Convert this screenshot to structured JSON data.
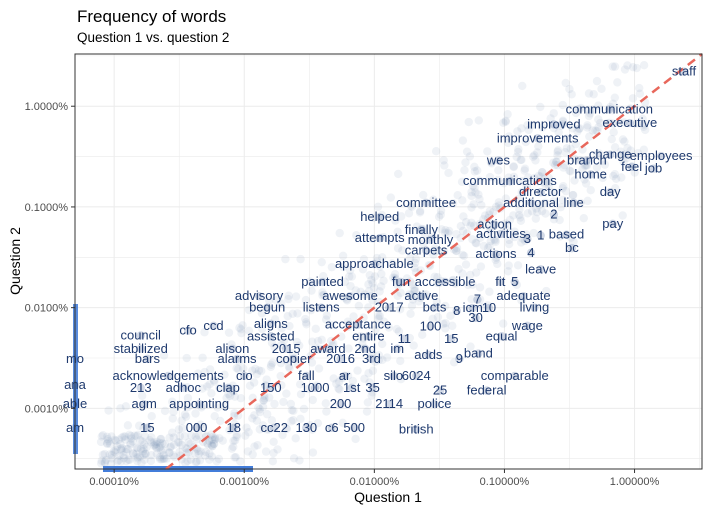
{
  "chart_data": {
    "type": "scatter",
    "title": "Frequency of words",
    "subtitle": "Question 1 vs. question 2",
    "xlabel": "Question 1",
    "ylabel": "Question 2",
    "x_scale": "log10",
    "y_scale": "log10",
    "xlim": [
      5e-07,
      0.033
    ],
    "ylim": [
      2.5e-06,
      0.033
    ],
    "x_ticks": [
      {
        "value": 1e-06,
        "label": "0.00010%"
      },
      {
        "value": 1e-05,
        "label": "0.00100%"
      },
      {
        "value": 0.0001,
        "label": "0.01000%"
      },
      {
        "value": 0.001,
        "label": "0.10000%"
      },
      {
        "value": 0.01,
        "label": "1.00000%"
      }
    ],
    "y_ticks": [
      {
        "value": 1e-05,
        "label": "0.0010%"
      },
      {
        "value": 0.0001,
        "label": "0.0100%"
      },
      {
        "value": 0.001,
        "label": "0.1000%"
      },
      {
        "value": 0.01,
        "label": "1.0000%"
      }
    ],
    "reference_line": {
      "type": "y=x",
      "color": "#e8675b",
      "style": "dashed"
    },
    "point_color": "#7f93b8",
    "grid": true,
    "points": [
      {
        "word": "staff",
        "x": 0.024,
        "y": 0.022
      },
      {
        "word": "communication",
        "x": 0.0064,
        "y": 0.0093
      },
      {
        "word": "executive",
        "x": 0.0092,
        "y": 0.0068
      },
      {
        "word": "improved",
        "x": 0.0024,
        "y": 0.0066
      },
      {
        "word": "improvements",
        "x": 0.0018,
        "y": 0.0048
      },
      {
        "word": "change",
        "x": 0.0065,
        "y": 0.0033
      },
      {
        "word": "employees",
        "x": 0.016,
        "y": 0.0032
      },
      {
        "word": "wes",
        "x": 0.0009,
        "y": 0.0029
      },
      {
        "word": "branch",
        "x": 0.0043,
        "y": 0.0029
      },
      {
        "word": "feel",
        "x": 0.0095,
        "y": 0.0025
      },
      {
        "word": "job",
        "x": 0.014,
        "y": 0.0024
      },
      {
        "word": "home",
        "x": 0.0046,
        "y": 0.0021
      },
      {
        "word": "communications",
        "x": 0.0011,
        "y": 0.0018
      },
      {
        "word": "director",
        "x": 0.0019,
        "y": 0.0014
      },
      {
        "word": "day",
        "x": 0.0065,
        "y": 0.0014
      },
      {
        "word": "additional",
        "x": 0.0016,
        "y": 0.0011
      },
      {
        "word": "line",
        "x": 0.0034,
        "y": 0.0011
      },
      {
        "word": "committee",
        "x": 0.00025,
        "y": 0.0011
      },
      {
        "word": "helped",
        "x": 0.00011,
        "y": 0.00079
      },
      {
        "word": "2",
        "x": 0.0024,
        "y": 0.00084
      },
      {
        "word": "action",
        "x": 0.00084,
        "y": 0.00067
      },
      {
        "word": "finally",
        "x": 0.00023,
        "y": 0.00059
      },
      {
        "word": "activities",
        "x": 0.00094,
        "y": 0.00054
      },
      {
        "word": "based",
        "x": 0.003,
        "y": 0.00053
      },
      {
        "word": "pay",
        "x": 0.0068,
        "y": 0.00068
      },
      {
        "word": "attempts",
        "x": 0.00011,
        "y": 0.00049
      },
      {
        "word": "monthly",
        "x": 0.00027,
        "y": 0.00047
      },
      {
        "word": "3",
        "x": 0.0015,
        "y": 0.00048
      },
      {
        "word": "1",
        "x": 0.0019,
        "y": 0.00052
      },
      {
        "word": "bc",
        "x": 0.0033,
        "y": 0.00039
      },
      {
        "word": "carpets",
        "x": 0.00025,
        "y": 0.00037
      },
      {
        "word": "actions",
        "x": 0.00086,
        "y": 0.00034
      },
      {
        "word": "4",
        "x": 0.0016,
        "y": 0.00035
      },
      {
        "word": "approachable",
        "x": 0.0001,
        "y": 0.00027
      },
      {
        "word": "leave",
        "x": 0.0019,
        "y": 0.00024
      },
      {
        "word": "painted",
        "x": 4e-05,
        "y": 0.00018
      },
      {
        "word": "fun",
        "x": 0.00016,
        "y": 0.00018
      },
      {
        "word": "accessible",
        "x": 0.00035,
        "y": 0.00018
      },
      {
        "word": "fit",
        "x": 0.00093,
        "y": 0.00018
      },
      {
        "word": "5",
        "x": 0.0012,
        "y": 0.00018
      },
      {
        "word": "advisory",
        "x": 1.3e-05,
        "y": 0.00013
      },
      {
        "word": "awesome",
        "x": 6.5e-05,
        "y": 0.00013
      },
      {
        "word": "active",
        "x": 0.00023,
        "y": 0.00013
      },
      {
        "word": "7",
        "x": 0.00062,
        "y": 0.00012
      },
      {
        "word": "adequate",
        "x": 0.0014,
        "y": 0.00013
      },
      {
        "word": "begun",
        "x": 1.5e-05,
        "y": 0.0001
      },
      {
        "word": "listens",
        "x": 3.9e-05,
        "y": 0.0001
      },
      {
        "word": "2017",
        "x": 0.00013,
        "y": 0.0001
      },
      {
        "word": "bcts",
        "x": 0.00029,
        "y": 0.0001
      },
      {
        "word": "8",
        "x": 0.00043,
        "y": 9.3e-05
      },
      {
        "word": "icm",
        "x": 0.00057,
        "y": 9.9e-05
      },
      {
        "word": "10",
        "x": 0.00076,
        "y": 9.9e-05
      },
      {
        "word": "living",
        "x": 0.0017,
        "y": 0.0001
      },
      {
        "word": "30",
        "x": 0.0006,
        "y": 7.9e-05
      },
      {
        "word": "ccd",
        "x": 5.8e-06,
        "y": 6.6e-05
      },
      {
        "word": "aligns",
        "x": 1.6e-05,
        "y": 6.9e-05
      },
      {
        "word": "acceptance",
        "x": 7.5e-05,
        "y": 6.8e-05
      },
      {
        "word": "100",
        "x": 0.00027,
        "y": 6.5e-05
      },
      {
        "word": "wage",
        "x": 0.0015,
        "y": 6.6e-05
      },
      {
        "word": "council",
        "x": 1.6e-06,
        "y": 5.3e-05
      },
      {
        "word": "cfo",
        "x": 3.7e-06,
        "y": 5.9e-05
      },
      {
        "word": "assisted",
        "x": 1.6e-05,
        "y": 5.2e-05
      },
      {
        "word": "entire",
        "x": 9e-05,
        "y": 5.2e-05
      },
      {
        "word": "11",
        "x": 0.00017,
        "y": 4.9e-05
      },
      {
        "word": "15",
        "x": 0.00039,
        "y": 4.9e-05
      },
      {
        "word": "equal",
        "x": 0.00095,
        "y": 5.2e-05
      },
      {
        "word": "stabilized",
        "x": 1.6e-06,
        "y": 3.9e-05
      },
      {
        "word": "alison",
        "x": 8.1e-06,
        "y": 3.9e-05
      },
      {
        "word": "2015",
        "x": 2.1e-05,
        "y": 3.9e-05
      },
      {
        "word": "award",
        "x": 4.4e-05,
        "y": 3.9e-05
      },
      {
        "word": "2nd",
        "x": 8.5e-05,
        "y": 3.9e-05
      },
      {
        "word": "im",
        "x": 0.00015,
        "y": 3.9e-05
      },
      {
        "word": "band",
        "x": 0.00063,
        "y": 3.5e-05
      },
      {
        "word": "mo",
        "x": 5e-07,
        "y": 3.1e-05
      },
      {
        "word": "bars",
        "x": 1.8e-06,
        "y": 3.1e-05
      },
      {
        "word": "alarms",
        "x": 8.8e-06,
        "y": 3.1e-05
      },
      {
        "word": "copier",
        "x": 2.4e-05,
        "y": 3.1e-05
      },
      {
        "word": "2016",
        "x": 5.5e-05,
        "y": 3.1e-05
      },
      {
        "word": "3rd",
        "x": 9.5e-05,
        "y": 3.1e-05
      },
      {
        "word": "adds",
        "x": 0.00026,
        "y": 3.4e-05
      },
      {
        "word": "9",
        "x": 0.00045,
        "y": 3.1e-05
      },
      {
        "word": "acknowledgements",
        "x": 2.6e-06,
        "y": 2.1e-05
      },
      {
        "word": "cio",
        "x": 1e-05,
        "y": 2.1e-05
      },
      {
        "word": "fall",
        "x": 3e-05,
        "y": 2.1e-05
      },
      {
        "word": "ar",
        "x": 5.9e-05,
        "y": 2.1e-05
      },
      {
        "word": "silo",
        "x": 0.00014,
        "y": 2.1e-05
      },
      {
        "word": "6024",
        "x": 0.00021,
        "y": 2.1e-05
      },
      {
        "word": "comparable",
        "x": 0.0012,
        "y": 2.1e-05
      },
      {
        "word": "ana",
        "x": 5e-07,
        "y": 1.7e-05
      },
      {
        "word": "213",
        "x": 1.6e-06,
        "y": 1.6e-05
      },
      {
        "word": "adhoc",
        "x": 3.4e-06,
        "y": 1.6e-05
      },
      {
        "word": "clap",
        "x": 7.5e-06,
        "y": 1.6e-05
      },
      {
        "word": "150",
        "x": 1.6e-05,
        "y": 1.6e-05
      },
      {
        "word": "1000",
        "x": 3.5e-05,
        "y": 1.6e-05
      },
      {
        "word": "1st",
        "x": 6.7e-05,
        "y": 1.6e-05
      },
      {
        "word": "35",
        "x": 9.7e-05,
        "y": 1.6e-05
      },
      {
        "word": "25",
        "x": 0.00032,
        "y": 1.5e-05
      },
      {
        "word": "federal",
        "x": 0.00073,
        "y": 1.5e-05
      },
      {
        "word": "able",
        "x": 5e-07,
        "y": 1.1e-05
      },
      {
        "word": "agm",
        "x": 1.7e-06,
        "y": 1.1e-05
      },
      {
        "word": "appointing",
        "x": 4.5e-06,
        "y": 1.1e-05
      },
      {
        "word": "200",
        "x": 5.5e-05,
        "y": 1.1e-05
      },
      {
        "word": "2114",
        "x": 0.00013,
        "y": 1.1e-05
      },
      {
        "word": "police",
        "x": 0.00029,
        "y": 1.1e-05
      },
      {
        "word": "am",
        "x": 5e-07,
        "y": 6.4e-06
      },
      {
        "word": "15",
        "x": 1.8e-06,
        "y": 6.4e-06
      },
      {
        "word": "000",
        "x": 4.3e-06,
        "y": 6.4e-06
      },
      {
        "word": "18",
        "x": 8.3e-06,
        "y": 6.4e-06
      },
      {
        "word": "cc22",
        "x": 1.7e-05,
        "y": 6.4e-06
      },
      {
        "word": "130",
        "x": 3e-05,
        "y": 6.4e-06
      },
      {
        "word": "c6",
        "x": 4.7e-05,
        "y": 6.4e-06
      },
      {
        "word": "500",
        "x": 7e-05,
        "y": 6.4e-06
      },
      {
        "word": "british",
        "x": 0.00021,
        "y": 6.2e-06
      }
    ]
  }
}
